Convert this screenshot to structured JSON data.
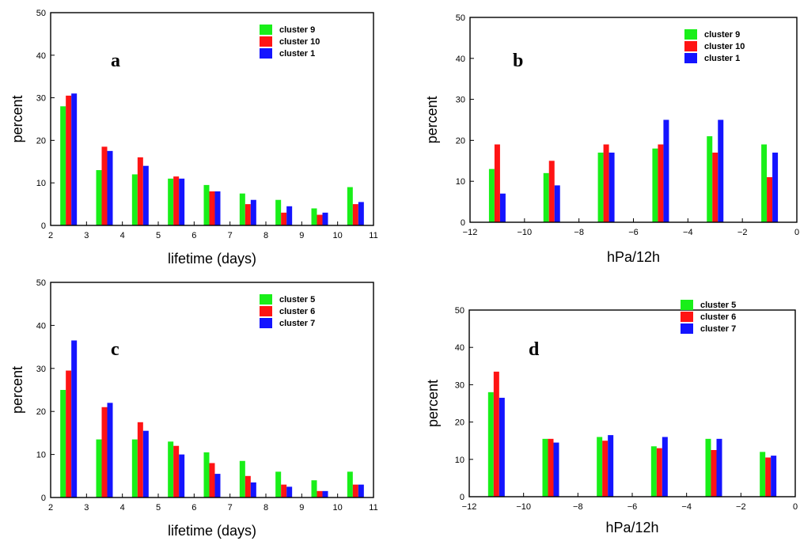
{
  "colors": {
    "green": "#19ef19",
    "red": "#ff1414",
    "blue": "#1414ff"
  },
  "chart_data": [
    {
      "id": "a",
      "type": "bar",
      "panel_label": "a",
      "xlabel": "lifetime (days)",
      "ylabel": "percent",
      "xlim": [
        2,
        11
      ],
      "ylim": [
        0,
        50
      ],
      "xticks": [
        2,
        3,
        4,
        5,
        6,
        7,
        8,
        9,
        10,
        11
      ],
      "yticks": [
        0,
        10,
        20,
        30,
        40,
        50
      ],
      "legend_position": "top-right",
      "x": [
        2.5,
        3.5,
        4.5,
        5.5,
        6.5,
        7.5,
        8.5,
        9.5,
        10.5
      ],
      "series": [
        {
          "name": "cluster 9",
          "color": "green",
          "values": [
            28,
            13,
            12,
            11,
            9.5,
            7.5,
            6,
            4,
            9
          ]
        },
        {
          "name": "cluster 10",
          "color": "red",
          "values": [
            30.5,
            18.5,
            16,
            11.5,
            8,
            5,
            3,
            2.5,
            5
          ]
        },
        {
          "name": "cluster 1",
          "color": "blue",
          "values": [
            31,
            17.5,
            14,
            11,
            8,
            6,
            4.5,
            3,
            5.5
          ]
        }
      ]
    },
    {
      "id": "b",
      "type": "bar",
      "panel_label": "b",
      "xlabel": "hPa/12h",
      "ylabel": "percent",
      "xlim": [
        -12,
        0
      ],
      "ylim": [
        0,
        50
      ],
      "xticks": [
        -12,
        -10,
        -8,
        -6,
        -4,
        -2,
        0
      ],
      "yticks": [
        0,
        10,
        20,
        30,
        40,
        50
      ],
      "legend_position": "top-right",
      "x": [
        -11,
        -9,
        -7,
        -5,
        -3,
        -1
      ],
      "series": [
        {
          "name": "cluster 9",
          "color": "green",
          "values": [
            13,
            12,
            17,
            18,
            21,
            19
          ]
        },
        {
          "name": "cluster 10",
          "color": "red",
          "values": [
            19,
            15,
            19,
            19,
            17,
            11
          ]
        },
        {
          "name": "cluster 1",
          "color": "blue",
          "values": [
            7,
            9,
            17,
            25,
            25,
            17
          ]
        }
      ]
    },
    {
      "id": "c",
      "type": "bar",
      "panel_label": "c",
      "xlabel": "lifetime (days)",
      "ylabel": "percent",
      "xlim": [
        2,
        11
      ],
      "ylim": [
        0,
        50
      ],
      "xticks": [
        2,
        3,
        4,
        5,
        6,
        7,
        8,
        9,
        10,
        11
      ],
      "yticks": [
        0,
        10,
        20,
        30,
        40,
        50
      ],
      "legend_position": "top-right",
      "x": [
        2.5,
        3.5,
        4.5,
        5.5,
        6.5,
        7.5,
        8.5,
        9.5,
        10.5
      ],
      "series": [
        {
          "name": "cluster 5",
          "color": "green",
          "values": [
            25,
            13.5,
            13.5,
            13,
            10.5,
            8.5,
            6,
            4,
            6
          ]
        },
        {
          "name": "cluster 6",
          "color": "red",
          "values": [
            29.5,
            21,
            17.5,
            12,
            8,
            5,
            3,
            1.5,
            3
          ]
        },
        {
          "name": "cluster 7",
          "color": "blue",
          "values": [
            36.5,
            22,
            15.5,
            10,
            5.5,
            3.5,
            2.5,
            1.5,
            3
          ]
        }
      ]
    },
    {
      "id": "d",
      "type": "bar",
      "panel_label": "d",
      "xlabel": "hPa/12h",
      "ylabel": "percent",
      "xlim": [
        -12,
        0
      ],
      "ylim": [
        0,
        50
      ],
      "xticks": [
        -12,
        -10,
        -8,
        -6,
        -4,
        -2,
        0
      ],
      "yticks": [
        0,
        10,
        20,
        30,
        40,
        50
      ],
      "legend_position": "top-right",
      "x": [
        -11,
        -9,
        -7,
        -5,
        -3,
        -1
      ],
      "series": [
        {
          "name": "cluster 5",
          "color": "green",
          "values": [
            28,
            15.5,
            16,
            13.5,
            15.5,
            12
          ]
        },
        {
          "name": "cluster 6",
          "color": "red",
          "values": [
            33.5,
            15.5,
            15,
            13,
            12.5,
            10.5
          ]
        },
        {
          "name": "cluster 7",
          "color": "blue",
          "values": [
            26.5,
            14.5,
            16.5,
            16,
            15.5,
            11
          ]
        }
      ]
    }
  ]
}
